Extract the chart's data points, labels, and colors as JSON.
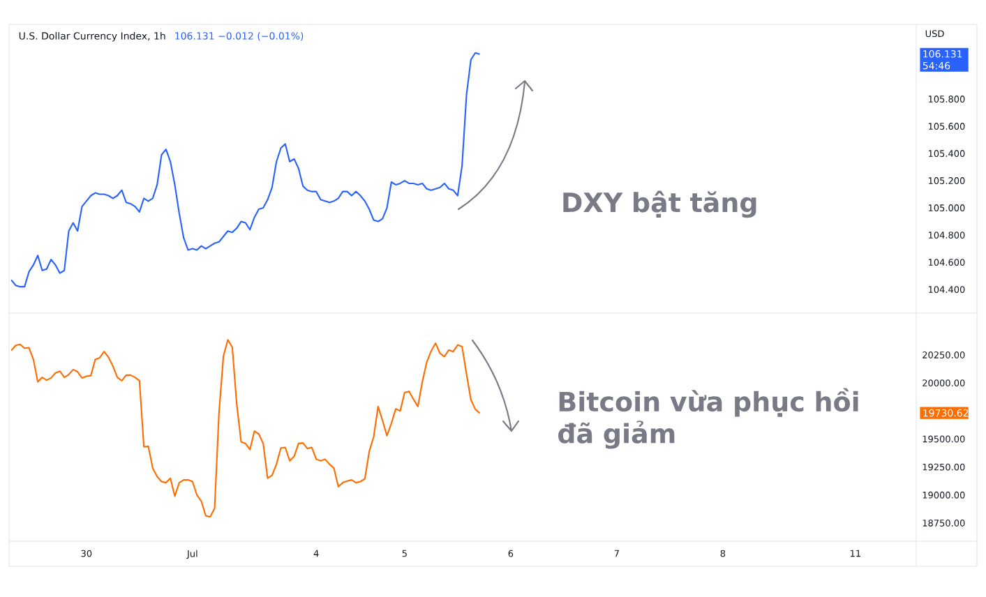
{
  "chart_data": [
    {
      "type": "line",
      "title": "U.S. Dollar Currency Index, 1h",
      "ylabel": "USD",
      "annotations": [
        "106.131  −0.012 (−0.01%)",
        "106.131",
        "54:46",
        "DXY bật tăng"
      ],
      "categories": [
        null,
        null,
        null,
        null,
        null,
        null,
        null,
        null,
        null,
        null,
        null,
        null,
        null,
        null,
        null,
        null,
        null,
        null,
        null,
        null,
        null,
        null,
        null,
        null,
        null,
        null,
        null,
        null,
        null,
        null,
        null,
        null,
        null,
        null,
        null,
        null,
        null,
        null,
        null,
        null,
        null,
        null,
        null,
        null,
        null,
        null,
        null,
        null,
        null,
        null,
        null,
        null,
        null,
        null,
        null,
        null,
        null,
        null,
        null,
        null,
        null,
        null,
        null,
        null,
        null,
        null,
        null,
        null,
        null,
        null,
        null,
        null,
        null,
        null,
        null,
        null,
        null,
        null,
        null,
        null,
        null,
        null,
        null,
        null,
        null,
        null,
        null,
        null,
        null,
        null,
        null,
        null,
        null,
        null,
        null,
        null,
        null,
        null,
        null,
        null,
        null,
        null,
        null,
        null,
        null,
        null,
        null,
        null,
        null,
        null,
        null,
        null,
        null,
        null,
        null,
        null,
        null,
        null,
        null,
        null,
        null,
        null,
        null,
        null,
        null,
        null,
        null,
        null,
        null,
        null,
        null,
        null,
        null,
        null,
        null,
        null,
        null,
        null,
        null,
        null,
        null,
        null,
        null,
        null,
        null,
        null,
        null,
        null,
        null,
        null,
        null,
        null,
        null,
        null,
        null,
        null,
        null,
        null,
        null,
        null,
        null,
        null,
        null,
        null,
        null,
        null,
        null,
        null,
        null,
        null,
        null,
        null,
        null,
        null,
        null,
        null,
        null,
        null,
        null,
        null,
        null,
        null,
        null,
        null,
        null,
        null,
        null,
        null,
        null,
        null,
        null,
        null,
        null,
        null,
        null,
        null,
        null,
        null,
        null,
        null,
        null,
        null,
        null,
        null,
        null,
        null,
        null,
        null,
        null,
        null,
        null,
        null,
        null,
        null,
        null,
        null,
        null,
        null,
        null
      ],
      "ylim": [
        104.226,
        106.349
      ],
      "yticks": [
        {
          "value": 104.4,
          "label": "104.400"
        },
        {
          "value": 104.6,
          "label": "104.600"
        },
        {
          "value": 104.8,
          "label": "104.800"
        },
        {
          "value": 105.0,
          "label": "105.000"
        },
        {
          "value": 105.2,
          "label": "105.200"
        },
        {
          "value": 105.4,
          "label": "105.400"
        },
        {
          "value": 105.6,
          "label": "105.600"
        },
        {
          "value": 105.8,
          "label": "105.800"
        }
      ],
      "series": [
        {
          "color": "#2962ff",
          "values": [
            104.47,
            104.43,
            104.42,
            104.42,
            104.53,
            104.58,
            104.65,
            104.54,
            104.55,
            104.62,
            104.58,
            104.52,
            104.54,
            104.83,
            104.89,
            104.83,
            105.01,
            105.05,
            105.09,
            105.11,
            105.1,
            105.1,
            105.09,
            105.07,
            105.09,
            105.13,
            105.04,
            105.03,
            105.01,
            104.97,
            105.07,
            105.05,
            105.07,
            105.17,
            105.39,
            105.43,
            105.34,
            105.17,
            104.96,
            104.78,
            104.69,
            104.7,
            104.69,
            104.72,
            104.7,
            104.72,
            104.74,
            104.75,
            104.79,
            104.83,
            104.82,
            104.85,
            104.9,
            104.89,
            104.84,
            104.93,
            104.99,
            105.0,
            105.06,
            105.15,
            105.34,
            105.44,
            105.47,
            105.34,
            105.36,
            105.29,
            105.16,
            105.13,
            105.12,
            105.12,
            105.06,
            105.05,
            105.04,
            105.05,
            105.07,
            105.12,
            105.12,
            105.09,
            105.12,
            105.09,
            105.05,
            104.99,
            104.91,
            104.9,
            104.92,
            105.0,
            105.19,
            105.17,
            105.18,
            105.2,
            105.18,
            105.18,
            105.17,
            105.18,
            105.14,
            105.13,
            105.14,
            105.15,
            105.18,
            105.14,
            105.13,
            105.09,
            105.31,
            105.83,
            106.09,
            106.14,
            106.13,
            null,
            null,
            null,
            null,
            null,
            null,
            null,
            null,
            null,
            null,
            null,
            null,
            null,
            null,
            null,
            null,
            null,
            null,
            null,
            null,
            null,
            null,
            null,
            null,
            null,
            null,
            null,
            null,
            null,
            null,
            null,
            null,
            null,
            null,
            null,
            null,
            null,
            null,
            null,
            null,
            null,
            null,
            null,
            null,
            null,
            null,
            null,
            null,
            null,
            null,
            null,
            null,
            null,
            null,
            null,
            null,
            null,
            null,
            null,
            null,
            null,
            null,
            null,
            null,
            null,
            null,
            null,
            null,
            null,
            null,
            null,
            null,
            null,
            null,
            null,
            null,
            null,
            null,
            null,
            null,
            null,
            null,
            null,
            null,
            null,
            null,
            null,
            null,
            null,
            null,
            null,
            null,
            null,
            null,
            null,
            null,
            null,
            null,
            null,
            null,
            null,
            null,
            null,
            null,
            null,
            null,
            null,
            null,
            null,
            null,
            null,
            null
          ]
        }
      ]
    },
    {
      "type": "line",
      "annotations": [
        "19730.62",
        "Bitcoin vừa phục hồi đã giảm"
      ],
      "categories": [
        null,
        null,
        null,
        null,
        null,
        null,
        null,
        null,
        null,
        null,
        null,
        null,
        null,
        null,
        null,
        null,
        null,
        "30",
        null,
        null,
        null,
        null,
        null,
        null,
        null,
        null,
        null,
        null,
        null,
        null,
        null,
        null,
        null,
        null,
        null,
        null,
        null,
        null,
        null,
        null,
        null,
        "Jul",
        null,
        null,
        null,
        null,
        null,
        null,
        null,
        null,
        null,
        null,
        null,
        null,
        null,
        null,
        null,
        null,
        null,
        null,
        null,
        null,
        null,
        null,
        null,
        null,
        null,
        null,
        null,
        "4",
        null,
        null,
        null,
        null,
        null,
        null,
        null,
        null,
        null,
        null,
        null,
        null,
        null,
        null,
        null,
        null,
        null,
        null,
        null,
        "5",
        null,
        null,
        null,
        null,
        null,
        null,
        null,
        null,
        null,
        null,
        null,
        null,
        null,
        null,
        null,
        null,
        null,
        null,
        null,
        null,
        null,
        null,
        null,
        "6",
        null,
        null,
        null,
        null,
        null,
        null,
        null,
        null,
        null,
        null,
        null,
        null,
        null,
        null,
        null,
        null,
        null,
        null,
        null,
        null,
        null,
        null,
        null,
        "7",
        null,
        null,
        null,
        null,
        null,
        null,
        null,
        null,
        null,
        null,
        null,
        null,
        null,
        null,
        null,
        null,
        null,
        null,
        null,
        null,
        null,
        null,
        null,
        "8",
        null,
        null,
        null,
        null,
        null,
        null,
        null,
        null,
        null,
        null,
        null,
        null,
        null,
        null,
        null,
        null,
        null,
        null,
        null,
        null,
        null,
        null,
        null,
        null,
        null,
        null,
        null,
        null,
        null,
        "11",
        null,
        null,
        null,
        null,
        null,
        null,
        null,
        null,
        null,
        null,
        null,
        null,
        null,
        null,
        null,
        null,
        null,
        null,
        null,
        null,
        null,
        null,
        null,
        null,
        null,
        null,
        null
      ],
      "ylim": [
        18588,
        20617
      ],
      "yticks": [
        {
          "value": 18750,
          "label": "18750.00"
        },
        {
          "value": 19000,
          "label": "19000.00"
        },
        {
          "value": 19250,
          "label": "19250.00"
        },
        {
          "value": 19500,
          "label": "19500.00"
        },
        {
          "value": 20000,
          "label": "20000.00"
        },
        {
          "value": 20250,
          "label": "20250.00"
        }
      ],
      "series": [
        {
          "color": "#ff6d00",
          "values": [
            20290,
            20335,
            20345,
            20310,
            20315,
            20210,
            20010,
            20050,
            20025,
            20045,
            20090,
            20105,
            20050,
            20075,
            20120,
            20100,
            20045,
            20060,
            20065,
            20210,
            20225,
            20280,
            20230,
            20150,
            20050,
            20020,
            20070,
            20070,
            20050,
            20020,
            19430,
            19435,
            19240,
            19165,
            19120,
            19110,
            19150,
            18990,
            19110,
            19135,
            19135,
            19120,
            19000,
            18945,
            18815,
            18805,
            18880,
            19735,
            20240,
            20385,
            20320,
            19815,
            19475,
            19460,
            19405,
            19570,
            19545,
            19460,
            19150,
            19175,
            19275,
            19420,
            19425,
            19305,
            19345,
            19460,
            19465,
            19415,
            19425,
            19320,
            19305,
            19320,
            19275,
            19240,
            19075,
            19110,
            19125,
            19135,
            19110,
            19120,
            19145,
            19390,
            19520,
            19790,
            19665,
            19530,
            19640,
            19770,
            19750,
            19915,
            19925,
            19855,
            19790,
            20010,
            20185,
            20285,
            20355,
            20265,
            20235,
            20295,
            20280,
            20340,
            20325,
            20080,
            19850,
            19765,
            19730,
            null,
            null,
            null,
            null,
            null,
            null,
            null,
            null,
            null,
            null,
            null,
            null,
            null,
            null,
            null,
            null,
            null,
            null,
            null,
            null,
            null,
            null,
            null,
            null,
            null,
            null,
            null,
            null,
            null,
            null,
            null,
            null,
            null,
            null,
            null,
            null,
            null,
            null,
            null,
            null,
            null,
            null,
            null,
            null,
            null,
            null,
            null,
            null,
            null,
            null,
            null,
            null,
            null,
            null,
            null,
            null,
            null,
            null,
            null,
            null,
            null,
            null,
            null,
            null,
            null,
            null,
            null,
            null,
            null,
            null,
            null,
            null,
            null,
            null,
            null,
            null,
            null,
            null,
            null,
            null,
            null,
            null,
            null,
            null,
            null,
            null,
            null,
            null,
            null,
            null,
            null,
            null,
            null,
            null,
            null,
            null,
            null,
            null,
            null,
            null,
            null,
            null,
            null,
            null,
            null,
            null,
            null,
            null,
            null,
            null,
            null,
            null
          ]
        }
      ]
    }
  ]
}
